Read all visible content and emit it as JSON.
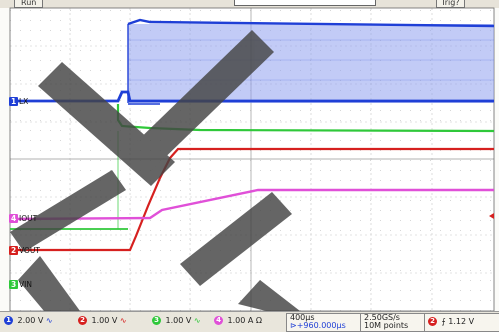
{
  "status": {
    "run_label": "Run",
    "trig_label": "Trig?"
  },
  "channels": [
    {
      "id": "1",
      "name": "LX",
      "scale": "2.00 V",
      "color": "#1f3fd6"
    },
    {
      "id": "2",
      "name": "VOUT",
      "scale": "1.00 V",
      "color": "#d6201f"
    },
    {
      "id": "3",
      "name": "VIN",
      "scale": "1.00 V",
      "color": "#2fc83a"
    },
    {
      "id": "4",
      "name": "IOUT",
      "scale": "1.00 A",
      "unit_suffix": "Ω",
      "color": "#e050d8"
    }
  ],
  "timebase": {
    "per_div": "400µs",
    "offset": "+960.000µs"
  },
  "acquisition": {
    "rate": "2.50GS/s",
    "points": "10M points"
  },
  "trigger": {
    "channel": "2",
    "level": "1.12 V",
    "slope_icon": "rising-edge-icon"
  },
  "colors": {
    "background": "#fbfbf8",
    "grid": "#b9b9b9"
  }
}
